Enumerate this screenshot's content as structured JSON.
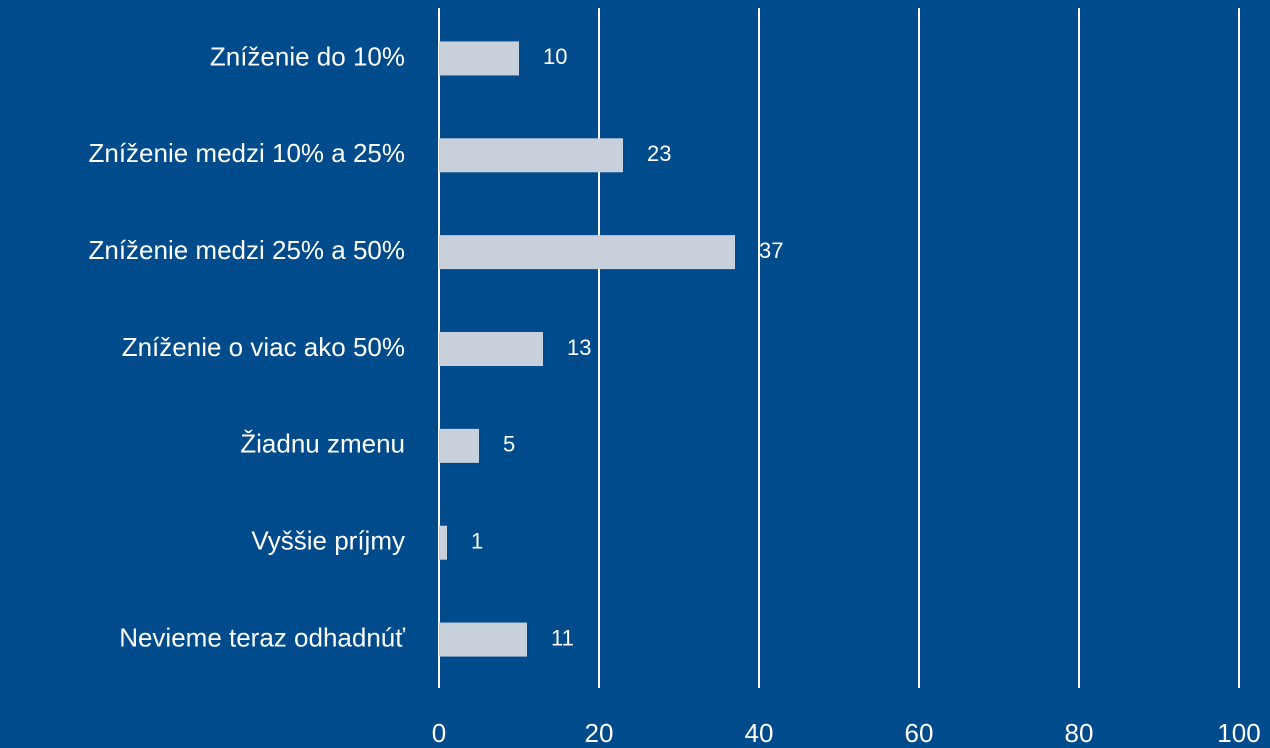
{
  "chart_data": {
    "type": "bar",
    "orientation": "horizontal",
    "categories": [
      "Zníženie do 10%",
      "Zníženie medzi 10% a 25%",
      "Zníženie medzi 25% a 50%",
      "Zníženie o viac ako 50%",
      "Žiadnu zmenu",
      "Vyššie príjmy",
      "Nevieme teraz odhadnúť"
    ],
    "values": [
      10,
      23,
      37,
      13,
      5,
      1,
      11
    ],
    "color": "#c8d0dc",
    "background": "#004b8c",
    "grid_color": "#ffffff",
    "xlim": [
      0,
      100
    ],
    "xticks": [
      0,
      20,
      40,
      60,
      80,
      100
    ],
    "grid": true
  }
}
